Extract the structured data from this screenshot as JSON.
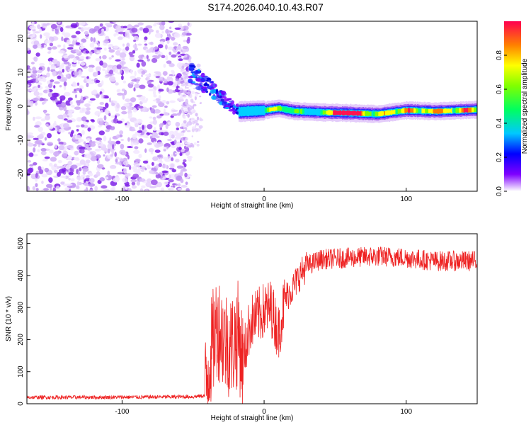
{
  "title": "S174.2026.040.10.43.R07",
  "chart_data": [
    {
      "type": "heatmap",
      "xlabel": "Height of straight line (km)",
      "ylabel": "Frequency (Hz)",
      "xlim": [
        -167,
        150
      ],
      "ylim": [
        -25,
        25
      ],
      "x_ticks": [
        -100,
        0,
        100
      ],
      "x_tick_labels": [
        "-100",
        "0",
        "100"
      ],
      "y_ticks": [
        -20,
        -10,
        0,
        10,
        20
      ],
      "y_tick_labels": [
        "-20",
        "-10",
        "0",
        "10",
        "20"
      ],
      "colorbar": {
        "label": "Normalized spectral amplitude",
        "range": [
          0,
          1
        ],
        "ticks": [
          0.0,
          0.2,
          0.4,
          0.6,
          0.8
        ],
        "tick_labels": [
          "0.0",
          "0.2",
          "0.4",
          "0.6",
          "0.8"
        ]
      },
      "regions": [
        {
          "name": "noise",
          "x_range": [
            -167,
            -52
          ],
          "freq_range": [
            -25,
            25
          ],
          "amplitude": [
            0.0,
            0.15
          ]
        },
        {
          "name": "transition",
          "x_range": [
            -52,
            -18
          ],
          "freq_range": [
            -8,
            12
          ],
          "amplitude": [
            0.1,
            0.3
          ]
        },
        {
          "name": "carrier",
          "x_range": [
            -18,
            150
          ],
          "freq_center_hz": -1.5,
          "amplitude": [
            0.3,
            1.0
          ]
        }
      ],
      "ridge": {
        "x": [
          -18,
          0,
          10,
          20,
          40,
          60,
          80,
          100,
          120,
          150
        ],
        "freq": [
          -1.6,
          -1.2,
          -0.6,
          -1.4,
          -1.8,
          -2.0,
          -2.3,
          -1.2,
          -1.5,
          -1.0
        ]
      }
    },
    {
      "type": "line",
      "xlabel": "Height of straight line (km)",
      "ylabel": "SNR (10 * v/v)",
      "xlim": [
        -167,
        150
      ],
      "ylim": [
        0,
        530
      ],
      "x_ticks": [
        -100,
        0,
        100
      ],
      "x_tick_labels": [
        "-100",
        "0",
        "100"
      ],
      "y_ticks": [
        0,
        100,
        200,
        300,
        400,
        500
      ],
      "y_tick_labels": [
        "0",
        "100",
        "200",
        "300",
        "400",
        "500"
      ],
      "series": [
        {
          "name": "SNR",
          "color": "#ee2222",
          "x": [
            -167,
            -120,
            -80,
            -50,
            -42,
            -38,
            -33,
            -28,
            -23,
            -18,
            -15,
            -10,
            0,
            5,
            10,
            15,
            20,
            25,
            30,
            40,
            60,
            80,
            100,
            120,
            150
          ],
          "values": [
            20,
            20,
            21,
            22,
            25,
            150,
            250,
            200,
            180,
            220,
            130,
            250,
            290,
            300,
            220,
            330,
            360,
            400,
            430,
            450,
            455,
            460,
            455,
            445,
            445
          ]
        }
      ]
    }
  ]
}
